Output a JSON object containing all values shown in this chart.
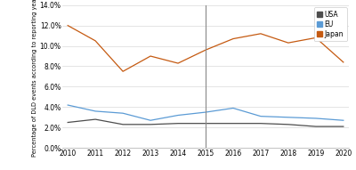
{
  "years": [
    2010,
    2011,
    2012,
    2013,
    2014,
    2015,
    2016,
    2017,
    2018,
    2019,
    2020
  ],
  "usa": [
    0.025,
    0.028,
    0.023,
    0.023,
    0.024,
    0.024,
    0.024,
    0.024,
    0.023,
    0.021,
    0.021
  ],
  "eu": [
    0.042,
    0.036,
    0.034,
    0.027,
    0.032,
    0.035,
    0.039,
    0.031,
    0.03,
    0.029,
    0.027
  ],
  "japan": [
    0.12,
    0.105,
    0.075,
    0.09,
    0.083,
    0.096,
    0.107,
    0.112,
    0.103,
    0.108,
    0.084
  ],
  "usa_color": "#4d4d4d",
  "eu_color": "#5b9bd5",
  "japan_color": "#c55a11",
  "vline_x": 2015,
  "ylim": [
    0.0,
    0.14
  ],
  "yticks": [
    0.0,
    0.02,
    0.04,
    0.06,
    0.08,
    0.1,
    0.12,
    0.14
  ],
  "ylabel": "Percentage of DLD events according to reporting year",
  "background_color": "#ffffff",
  "grid_color": "#d9d9d9",
  "legend_labels": [
    "USA",
    "EU",
    "Japan"
  ],
  "legend_marker_colors": [
    "#4d4d4d",
    "#5b9bd5",
    "#c55a11"
  ]
}
